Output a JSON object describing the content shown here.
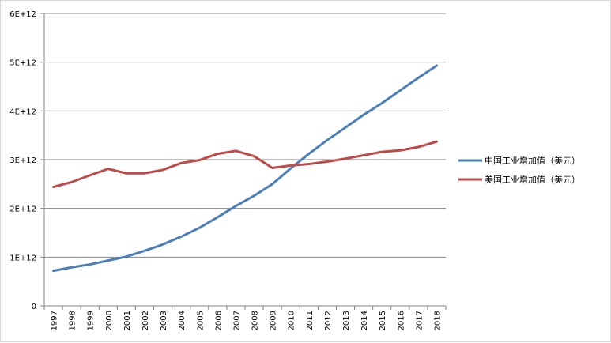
{
  "chart_data": {
    "type": "line",
    "title": "",
    "xlabel": "",
    "ylabel": "",
    "categories": [
      "1997",
      "1998",
      "1999",
      "2000",
      "2001",
      "2002",
      "2003",
      "2004",
      "2005",
      "2006",
      "2007",
      "2008",
      "2009",
      "2010",
      "2011",
      "2012",
      "2013",
      "2014",
      "2015",
      "2016",
      "2017",
      "2018"
    ],
    "ylim": [
      0,
      6000000000000
    ],
    "y_ticks": [
      0,
      1000000000000,
      2000000000000,
      3000000000000,
      4000000000000,
      5000000000000,
      6000000000000
    ],
    "y_tick_labels": [
      "0",
      "1E+12",
      "2E+12",
      "3E+12",
      "4E+12",
      "5E+12",
      "6E+12"
    ],
    "grid": "horizontal",
    "legend_position": "right",
    "series": [
      {
        "name": "中国工业增加值（美元）",
        "color": "#4a7ebb",
        "values": [
          720000000000.0,
          790000000000.0,
          850000000000.0,
          930000000000.0,
          1010000000000.0,
          1130000000000.0,
          1260000000000.0,
          1420000000000.0,
          1600000000000.0,
          1820000000000.0,
          2050000000000.0,
          2260000000000.0,
          2500000000000.0,
          2820000000000.0,
          3120000000000.0,
          3400000000000.0,
          3660000000000.0,
          3920000000000.0,
          4160000000000.0,
          4420000000000.0,
          4680000000000.0,
          4930000000000.0
        ]
      },
      {
        "name": "美国工业增加值（美元）",
        "color": "#be4b48",
        "values": [
          2440000000000.0,
          2540000000000.0,
          2680000000000.0,
          2810000000000.0,
          2720000000000.0,
          2720000000000.0,
          2790000000000.0,
          2930000000000.0,
          2990000000000.0,
          3120000000000.0,
          3180000000000.0,
          3070000000000.0,
          2830000000000.0,
          2880000000000.0,
          2910000000000.0,
          2960000000000.0,
          3020000000000.0,
          3090000000000.0,
          3160000000000.0,
          3190000000000.0,
          3260000000000.0,
          3370000000000.0
        ]
      }
    ]
  }
}
